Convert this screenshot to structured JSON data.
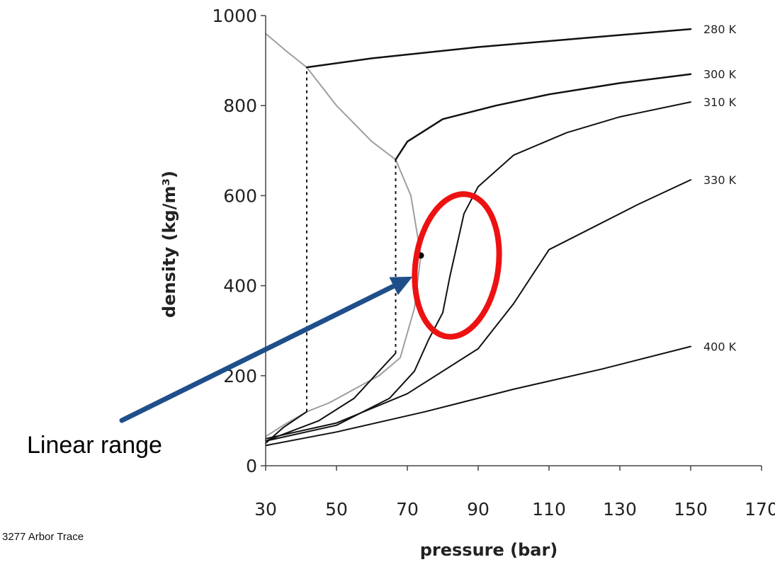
{
  "annotation": "Linear range",
  "footer": "3277 Arbor Trace",
  "colors": {
    "highlight": "#ee1111",
    "arrow": "#1f4f8b",
    "coexistence": "#9e9e9e",
    "isotherm": "#111111"
  },
  "chart_data": {
    "type": "line",
    "xlabel": "pressure (bar)",
    "ylabel": "density (kg/m³)",
    "xlim": [
      30,
      170
    ],
    "ylim": [
      0,
      1000
    ],
    "xticks": [
      30,
      50,
      70,
      90,
      110,
      130,
      150,
      170
    ],
    "yticks": [
      0,
      200,
      400,
      600,
      800,
      1000
    ],
    "series": [
      {
        "name": "280 K",
        "x": [
          30,
          35,
          41.6
        ],
        "y": [
          50,
          85,
          120
        ],
        "x2": [
          41.6,
          60,
          90,
          120,
          150
        ],
        "y2": [
          885,
          905,
          930,
          950,
          970
        ]
      },
      {
        "name": "300 K",
        "x": [
          30,
          45,
          55,
          62,
          66.7
        ],
        "y": [
          55,
          100,
          150,
          210,
          250
        ],
        "x2": [
          66.7,
          70,
          80,
          95,
          110,
          130,
          150
        ],
        "y2": [
          680,
          720,
          770,
          800,
          825,
          850,
          870
        ]
      },
      {
        "name": "310 K",
        "x": [
          30,
          50,
          65,
          72,
          76,
          80,
          82,
          84,
          86,
          90,
          100,
          115,
          130,
          150
        ],
        "y": [
          55,
          90,
          150,
          210,
          280,
          340,
          420,
          490,
          560,
          620,
          690,
          740,
          775,
          808
        ]
      },
      {
        "name": "330 K",
        "x": [
          30,
          50,
          70,
          90,
          100,
          110,
          120,
          135,
          150
        ],
        "y": [
          60,
          95,
          160,
          260,
          360,
          480,
          520,
          580,
          635
        ]
      },
      {
        "name": "400 K",
        "x": [
          30,
          50,
          75,
          100,
          125,
          150
        ],
        "y": [
          45,
          75,
          120,
          170,
          215,
          265
        ]
      }
    ],
    "coexistence_curve": {
      "x": [
        30,
        36,
        41.6,
        50,
        60,
        66.7,
        71,
        73.8,
        72,
        68,
        62,
        55,
        48,
        41.6,
        35,
        30
      ],
      "y": [
        960,
        920,
        885,
        800,
        720,
        680,
        600,
        467,
        350,
        240,
        200,
        170,
        140,
        120,
        90,
        65
      ]
    },
    "critical_point": {
      "x": 73.8,
      "y": 467
    },
    "tie_lines": [
      {
        "x": 41.6,
        "y": [
          120,
          885
        ]
      },
      {
        "x": 66.7,
        "y": [
          250,
          680
        ]
      }
    ],
    "highlight_ellipse": {
      "center_x": 84,
      "center_y": 445,
      "rx_data": 8.5,
      "ry_data": 275
    },
    "arrow": {
      "to_x": 71.5,
      "to_y": 420
    }
  }
}
